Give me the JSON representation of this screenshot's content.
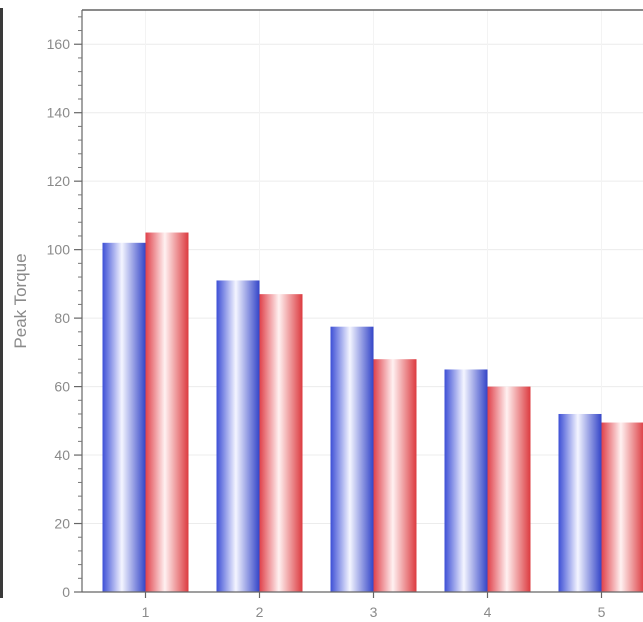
{
  "chart_data": {
    "type": "bar",
    "title": "",
    "xlabel": "",
    "ylabel": "Peak Torque",
    "categories": [
      "1",
      "2",
      "3",
      "4",
      "5"
    ],
    "series": [
      {
        "color": "#5566dd",
        "values": [
          102,
          91,
          77.5,
          65,
          52
        ]
      },
      {
        "color": "#e05555",
        "values": [
          105,
          87,
          68,
          60,
          49.5
        ]
      }
    ],
    "ylim": [
      0,
      170
    ],
    "yticks": [
      0,
      20,
      40,
      60,
      80,
      100,
      120,
      140,
      160
    ],
    "minor_tick_step": 4,
    "grid": true,
    "legend": "none"
  }
}
